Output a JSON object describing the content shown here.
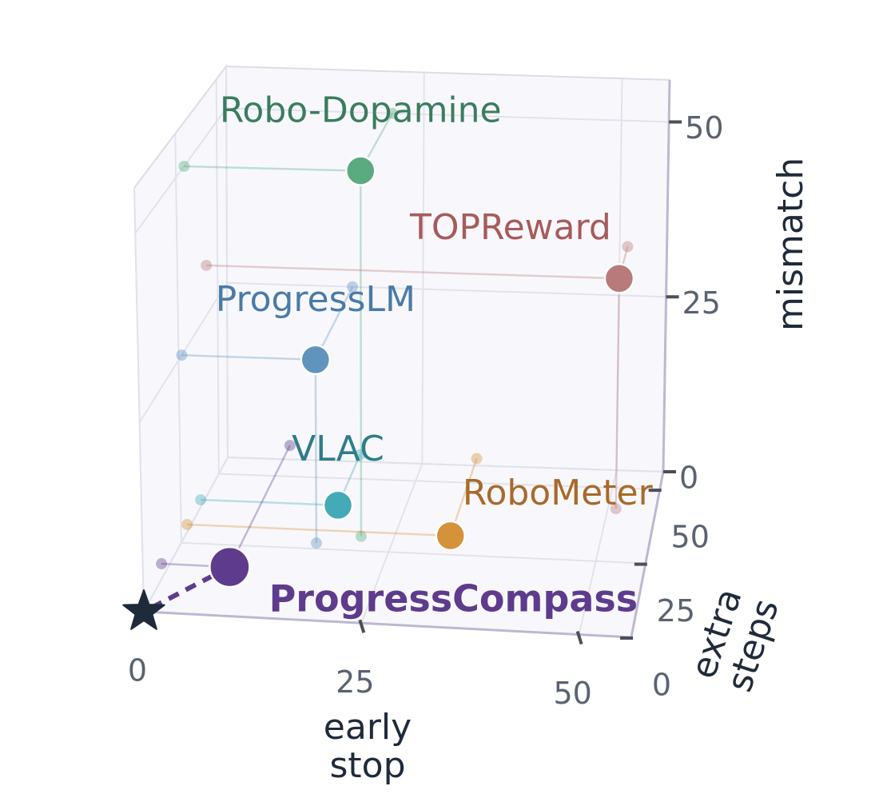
{
  "chart_data": {
    "type": "scatter3d",
    "xlabel": "early stop",
    "ylabel": "extra steps",
    "zlabel": "mismatch",
    "xlim": [
      0,
      56
    ],
    "ylim": [
      0,
      56
    ],
    "zlim": [
      0,
      56
    ],
    "xticks": [
      0,
      25,
      50
    ],
    "yticks": [
      0,
      25,
      50
    ],
    "zticks": [
      0,
      25,
      50
    ],
    "grid": true,
    "target": {
      "x": 0,
      "y": 0,
      "z": 0,
      "color": "#1f2a3a"
    },
    "series": [
      {
        "name": "Robo-Dopamine",
        "color": "#5aab80",
        "label_color": "#3a7d5e",
        "x": 21,
        "y": 30,
        "z": 50
      },
      {
        "name": "TOPReward",
        "color": "#b87a7a",
        "label_color": "#a85a5a",
        "x": 51,
        "y": 43,
        "z": 32
      },
      {
        "name": "ProgressLM",
        "color": "#6094bd",
        "label_color": "#4a7ba8",
        "x": 16,
        "y": 27,
        "z": 25
      },
      {
        "name": "VLAC",
        "color": "#45aab8",
        "label_color": "#2e7d8a",
        "x": 17,
        "y": 38,
        "z": 1
      },
      {
        "name": "RoboMeter",
        "color": "#d4923a",
        "label_color": "#a86a2a",
        "x": 32,
        "y": 29,
        "z": 1
      },
      {
        "name": "ProgressCompass",
        "color": "#5e3b8c",
        "label_color": "#5e3b8c",
        "x": 8,
        "y": 12,
        "z": 2,
        "emphasis": true
      }
    ]
  }
}
